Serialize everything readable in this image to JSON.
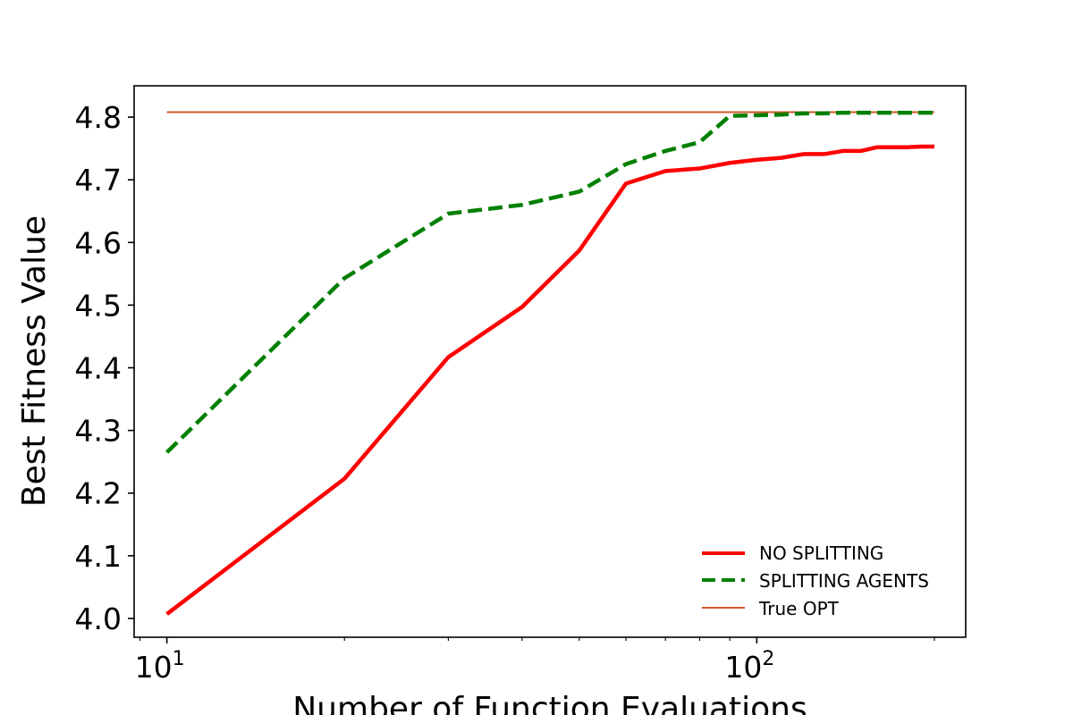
{
  "chart_data": {
    "type": "line",
    "title": "",
    "xlabel": "Number of Function Evaluations",
    "ylabel": "Best Fitness Value",
    "xscale": "log",
    "xlim": [
      8.8,
      226
    ],
    "ylim": [
      3.97,
      4.85
    ],
    "yticks": [
      "4.0",
      "4.1",
      "4.2",
      "4.3",
      "4.4",
      "4.5",
      "4.6",
      "4.7",
      "4.8"
    ],
    "xticks": [
      {
        "value": 10,
        "base": "10",
        "exponent": "1"
      },
      {
        "value": 100,
        "base": "10",
        "exponent": "2"
      }
    ],
    "grid": false,
    "legend_position": "lower-right",
    "series": [
      {
        "name": "NO SPLITTING",
        "color": "#ff0000",
        "style": "solid",
        "x": [
          10,
          20,
          30,
          40,
          50,
          60,
          70,
          80,
          90,
          100,
          110,
          120,
          130,
          140,
          150,
          160,
          170,
          180,
          190,
          200
        ],
        "values": [
          4.007,
          4.223,
          4.417,
          4.497,
          4.587,
          4.694,
          4.714,
          4.718,
          4.727,
          4.732,
          4.735,
          4.741,
          4.741,
          4.746,
          4.746,
          4.752,
          4.752,
          4.752,
          4.753,
          4.753
        ]
      },
      {
        "name": "SPLITTING AGENTS",
        "color": "#008000",
        "style": "dashed",
        "x": [
          10,
          20,
          30,
          40,
          50,
          60,
          70,
          80,
          90,
          100,
          110,
          120,
          130,
          140,
          150,
          160,
          170,
          180,
          190,
          200
        ],
        "values": [
          4.265,
          4.543,
          4.646,
          4.66,
          4.681,
          4.725,
          4.746,
          4.76,
          4.802,
          4.803,
          4.804,
          4.806,
          4.806,
          4.807,
          4.807,
          4.807,
          4.807,
          4.807,
          4.807,
          4.807
        ]
      },
      {
        "name": "True OPT",
        "color": "#d2592a",
        "style": "solid-thin",
        "x": [
          10,
          200
        ],
        "values": [
          4.808,
          4.808
        ]
      }
    ]
  }
}
